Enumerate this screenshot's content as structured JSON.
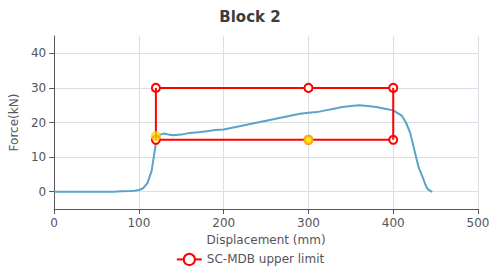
{
  "chart_data": {
    "type": "line",
    "title": "Block 2",
    "xlabel": "Displacement (mm)",
    "ylabel": "Force(kN)",
    "xlim": [
      0,
      500
    ],
    "ylim": [
      -5,
      45
    ],
    "xticks": [
      0,
      100,
      200,
      300,
      400,
      500
    ],
    "yticks": [
      0,
      10,
      20,
      30,
      40
    ],
    "grid": true,
    "legend": "bottom",
    "series": [
      {
        "color": "#5BA3C9",
        "marker": "none",
        "x": [
          0,
          10,
          20,
          30,
          40,
          50,
          60,
          70,
          80,
          90,
          95,
          100,
          105,
          110,
          115,
          120,
          125,
          130,
          135,
          140,
          150,
          160,
          170,
          180,
          190,
          200,
          210,
          220,
          230,
          240,
          250,
          260,
          270,
          280,
          290,
          300,
          310,
          320,
          330,
          340,
          350,
          360,
          370,
          380,
          390,
          400,
          410,
          415,
          420,
          425,
          430,
          435,
          438,
          440,
          442,
          444,
          446
        ],
        "values": [
          0,
          0,
          0,
          0,
          0,
          0,
          0,
          0,
          0.1,
          0.2,
          0.3,
          0.5,
          1.0,
          2.5,
          6.0,
          14.0,
          16.5,
          16.8,
          16.5,
          16.3,
          16.5,
          17.0,
          17.2,
          17.5,
          17.8,
          18.0,
          18.5,
          19.0,
          19.5,
          20.0,
          20.5,
          21.0,
          21.5,
          22.0,
          22.5,
          22.8,
          23.0,
          23.5,
          24.0,
          24.5,
          24.8,
          25.0,
          24.8,
          24.5,
          24.0,
          23.5,
          22.0,
          20.0,
          17.0,
          12.0,
          7.0,
          4.0,
          2.0,
          1.0,
          0.5,
          0.2,
          0.0
        ]
      },
      {
        "name": "SC-MDB upper limit",
        "color": "#FF0000",
        "marker": "circle",
        "x": [
          120,
          300,
          400
        ],
        "values": [
          30,
          30,
          30
        ]
      },
      {
        "name": "SC-MDB upper limit",
        "color": "#FF0000",
        "marker": "circle",
        "x": [
          120,
          300,
          400
        ],
        "values": [
          15,
          15,
          15
        ]
      },
      {
        "color": "#FF0000",
        "marker": "none",
        "x": [
          120,
          120
        ],
        "values": [
          30,
          15
        ]
      },
      {
        "color": "#FF0000",
        "marker": "none",
        "x": [
          400,
          400
        ],
        "values": [
          30,
          15
        ]
      },
      {
        "type": "scatter",
        "color": "#FFD700",
        "marker": "circle",
        "x": [
          120,
          300
        ],
        "values": [
          16,
          15
        ]
      }
    ]
  }
}
